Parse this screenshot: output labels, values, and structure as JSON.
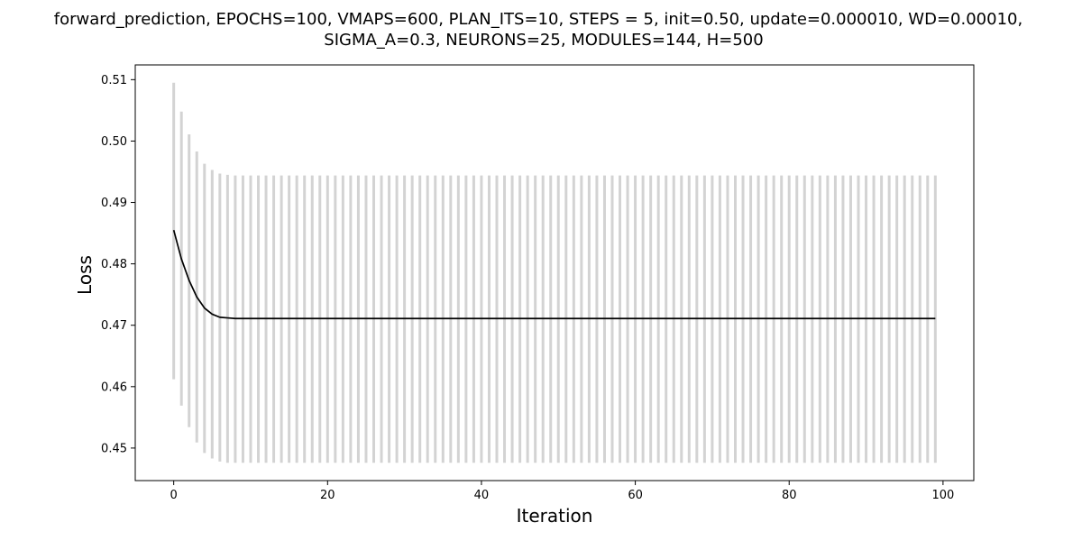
{
  "chart_data": {
    "type": "line",
    "title_lines": [
      "forward_prediction, EPOCHS=100, VMAPS=600, PLAN_ITS=10, STEPS = 5, init=0.50, update=0.000010, WD=0.00010,",
      "SIGMA_A=0.3, NEURONS=25, MODULES=144, H=500"
    ],
    "xlabel": "Iteration",
    "ylabel": "Loss",
    "xlim": [
      -5,
      104
    ],
    "ylim": [
      0.4447,
      0.5124
    ],
    "xticks": [
      0,
      20,
      40,
      60,
      80,
      100
    ],
    "xtick_labels": [
      "0",
      "20",
      "40",
      "60",
      "80",
      "100"
    ],
    "yticks": [
      0.45,
      0.46,
      0.47,
      0.48,
      0.49,
      0.5,
      0.51
    ],
    "ytick_labels": [
      "0.45",
      "0.46",
      "0.47",
      "0.48",
      "0.49",
      "0.50",
      "0.51"
    ],
    "grid": false,
    "legend": "none",
    "colors": {
      "line": "#000000",
      "error_bar": "#d3d3d3"
    },
    "series": [
      {
        "x_start": 0,
        "x_step": 1,
        "mean": [
          0.4855,
          0.4808,
          0.4773,
          0.4746,
          0.4728,
          0.4718,
          0.4713,
          0.4712,
          0.4711,
          0.4711,
          0.4711,
          0.4711,
          0.4711,
          0.4711,
          0.4711,
          0.4711,
          0.4711,
          0.4711,
          0.4711,
          0.4711,
          0.4711,
          0.4711,
          0.4711,
          0.4711,
          0.4711,
          0.4711,
          0.4711,
          0.4711,
          0.4711,
          0.4711,
          0.4711,
          0.4711,
          0.4711,
          0.4711,
          0.4711,
          0.4711,
          0.4711,
          0.4711,
          0.4711,
          0.4711,
          0.4711,
          0.4711,
          0.4711,
          0.4711,
          0.4711,
          0.4711,
          0.4711,
          0.4711,
          0.4711,
          0.4711,
          0.4711,
          0.4711,
          0.4711,
          0.4711,
          0.4711,
          0.4711,
          0.4711,
          0.4711,
          0.4711,
          0.4711,
          0.4711,
          0.4711,
          0.4711,
          0.4711,
          0.4711,
          0.4711,
          0.4711,
          0.4711,
          0.4711,
          0.4711,
          0.4711,
          0.4711,
          0.4711,
          0.4711,
          0.4711,
          0.4711,
          0.4711,
          0.4711,
          0.4711,
          0.4711,
          0.4711,
          0.4711,
          0.4711,
          0.4711,
          0.4711,
          0.4711,
          0.4711,
          0.4711,
          0.4711,
          0.4711,
          0.4711,
          0.4711,
          0.4711,
          0.4711,
          0.4711,
          0.4711,
          0.4711,
          0.4711,
          0.4711,
          0.4711
        ],
        "error_upper": [
          0.5095,
          0.5048,
          0.5011,
          0.4983,
          0.4963,
          0.4953,
          0.4947,
          0.4945,
          0.4944,
          0.4944,
          0.4944,
          0.4944,
          0.4944,
          0.4944,
          0.4944,
          0.4944,
          0.4944,
          0.4944,
          0.4944,
          0.4944,
          0.4944,
          0.4944,
          0.4944,
          0.4944,
          0.4944,
          0.4944,
          0.4944,
          0.4944,
          0.4944,
          0.4944,
          0.4944,
          0.4944,
          0.4944,
          0.4944,
          0.4944,
          0.4944,
          0.4944,
          0.4944,
          0.4944,
          0.4944,
          0.4944,
          0.4944,
          0.4944,
          0.4944,
          0.4944,
          0.4944,
          0.4944,
          0.4944,
          0.4944,
          0.4944,
          0.4944,
          0.4944,
          0.4944,
          0.4944,
          0.4944,
          0.4944,
          0.4944,
          0.4944,
          0.4944,
          0.4944,
          0.4944,
          0.4944,
          0.4944,
          0.4944,
          0.4944,
          0.4944,
          0.4944,
          0.4944,
          0.4944,
          0.4944,
          0.4944,
          0.4944,
          0.4944,
          0.4944,
          0.4944,
          0.4944,
          0.4944,
          0.4944,
          0.4944,
          0.4944,
          0.4944,
          0.4944,
          0.4944,
          0.4944,
          0.4944,
          0.4944,
          0.4944,
          0.4944,
          0.4944,
          0.4944,
          0.4944,
          0.4944,
          0.4944,
          0.4944,
          0.4944,
          0.4944,
          0.4944,
          0.4944,
          0.4944,
          0.4944
        ],
        "error_lower": [
          0.4612,
          0.4569,
          0.4534,
          0.4509,
          0.4492,
          0.4483,
          0.4478,
          0.4476,
          0.4476,
          0.4476,
          0.4476,
          0.4476,
          0.4476,
          0.4476,
          0.4476,
          0.4476,
          0.4476,
          0.4476,
          0.4476,
          0.4476,
          0.4476,
          0.4476,
          0.4476,
          0.4476,
          0.4476,
          0.4476,
          0.4476,
          0.4476,
          0.4476,
          0.4476,
          0.4476,
          0.4476,
          0.4476,
          0.4476,
          0.4476,
          0.4476,
          0.4476,
          0.4476,
          0.4476,
          0.4476,
          0.4476,
          0.4476,
          0.4476,
          0.4476,
          0.4476,
          0.4476,
          0.4476,
          0.4476,
          0.4476,
          0.4476,
          0.4476,
          0.4476,
          0.4476,
          0.4476,
          0.4476,
          0.4476,
          0.4476,
          0.4476,
          0.4476,
          0.4476,
          0.4476,
          0.4476,
          0.4476,
          0.4476,
          0.4476,
          0.4476,
          0.4476,
          0.4476,
          0.4476,
          0.4476,
          0.4476,
          0.4476,
          0.4476,
          0.4476,
          0.4476,
          0.4476,
          0.4476,
          0.4476,
          0.4476,
          0.4476,
          0.4476,
          0.4476,
          0.4476,
          0.4476,
          0.4476,
          0.4476,
          0.4476,
          0.4476,
          0.4476,
          0.4476,
          0.4476,
          0.4476,
          0.4476,
          0.4476,
          0.4476,
          0.4476,
          0.4476,
          0.4476,
          0.4476,
          0.4476
        ]
      }
    ]
  }
}
